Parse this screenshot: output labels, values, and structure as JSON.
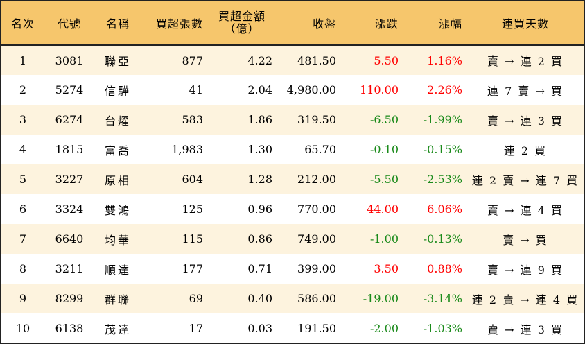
{
  "headers": {
    "rank": "名次",
    "code": "代號",
    "name": "名稱",
    "lots": "買超張數",
    "amount_line1": "買超金額",
    "amount_line2": "（億）",
    "close": "收盤",
    "change": "漲跌",
    "pct": "漲幅",
    "streak": "連買天數"
  },
  "colors": {
    "header_bg": "#f6c66c",
    "stripe_bg": "#fdf3de",
    "up": "#ff0000",
    "down": "#1a8a1a"
  },
  "rows": [
    {
      "rank": "1",
      "code": "3081",
      "name": "聯亞",
      "lots": "877",
      "amount": "4.22",
      "close": "481.50",
      "change": "5.50",
      "pct": "1.16%",
      "dir": "up",
      "streak": "賣 → 連 2 買"
    },
    {
      "rank": "2",
      "code": "5274",
      "name": "信驊",
      "lots": "41",
      "amount": "2.04",
      "close": "4,980.00",
      "change": "110.00",
      "pct": "2.26%",
      "dir": "up",
      "streak": "連 7 賣 → 買"
    },
    {
      "rank": "3",
      "code": "6274",
      "name": "台燿",
      "lots": "583",
      "amount": "1.86",
      "close": "319.50",
      "change": "-6.50",
      "pct": "-1.99%",
      "dir": "down",
      "streak": "賣 → 連 3 買"
    },
    {
      "rank": "4",
      "code": "1815",
      "name": "富喬",
      "lots": "1,983",
      "amount": "1.30",
      "close": "65.70",
      "change": "-0.10",
      "pct": "-0.15%",
      "dir": "down",
      "streak": "連 2 買"
    },
    {
      "rank": "5",
      "code": "3227",
      "name": "原相",
      "lots": "604",
      "amount": "1.28",
      "close": "212.00",
      "change": "-5.50",
      "pct": "-2.53%",
      "dir": "down",
      "streak": "連 2 賣 → 連 7 買"
    },
    {
      "rank": "6",
      "code": "3324",
      "name": "雙鴻",
      "lots": "125",
      "amount": "0.96",
      "close": "770.00",
      "change": "44.00",
      "pct": "6.06%",
      "dir": "up",
      "streak": "賣 → 連 4 買"
    },
    {
      "rank": "7",
      "code": "6640",
      "name": "均華",
      "lots": "115",
      "amount": "0.86",
      "close": "749.00",
      "change": "-1.00",
      "pct": "-0.13%",
      "dir": "down",
      "streak": "賣 → 買"
    },
    {
      "rank": "8",
      "code": "3211",
      "name": "順達",
      "lots": "177",
      "amount": "0.71",
      "close": "399.00",
      "change": "3.50",
      "pct": "0.88%",
      "dir": "up",
      "streak": "賣 → 連 9 買"
    },
    {
      "rank": "9",
      "code": "8299",
      "name": "群聯",
      "lots": "69",
      "amount": "0.40",
      "close": "586.00",
      "change": "-19.00",
      "pct": "-3.14%",
      "dir": "down",
      "streak": "連 2 賣 → 連 4 買"
    },
    {
      "rank": "10",
      "code": "6138",
      "name": "茂達",
      "lots": "17",
      "amount": "0.03",
      "close": "191.50",
      "change": "-2.00",
      "pct": "-1.03%",
      "dir": "down",
      "streak": "賣 → 連 3 買"
    }
  ]
}
